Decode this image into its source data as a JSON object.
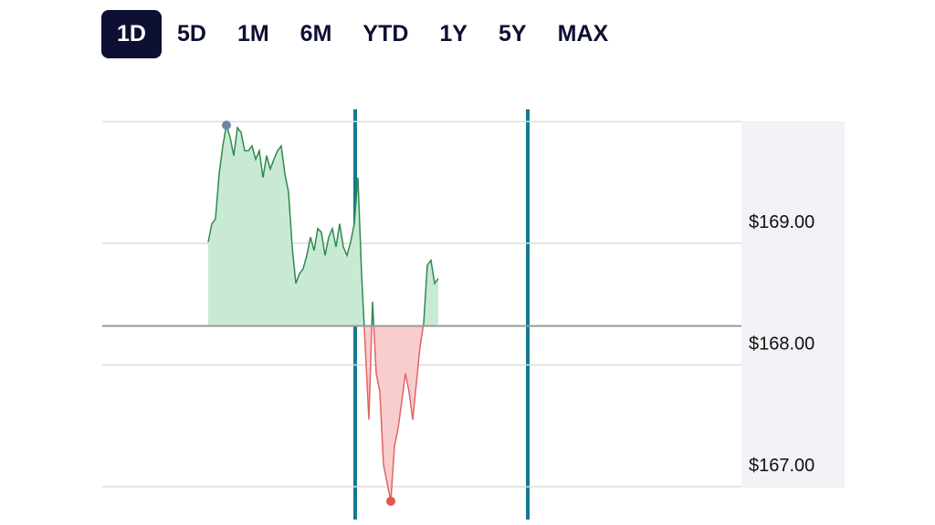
{
  "tabs": [
    "1D",
    "5D",
    "1M",
    "6M",
    "YTD",
    "1Y",
    "5Y",
    "MAX"
  ],
  "selected_tab": 0,
  "chart_data": {
    "type": "line",
    "values": [
      169.01,
      169.16,
      169.2,
      169.57,
      169.8,
      169.97,
      169.87,
      169.72,
      169.95,
      169.91,
      169.76,
      169.76,
      169.8,
      169.69,
      169.76,
      169.54,
      169.72,
      169.61,
      169.69,
      169.76,
      169.8,
      169.57,
      169.42,
      168.97,
      168.67,
      168.75,
      168.79,
      168.9,
      169.05,
      168.94,
      169.12,
      169.09,
      168.9,
      169.05,
      169.12,
      168.97,
      169.16,
      168.97,
      168.9,
      169.01,
      169.16,
      169.54,
      168.75,
      168.15,
      167.55,
      168.52,
      167.93,
      167.78,
      167.18,
      167.03,
      166.88,
      167.33,
      167.48,
      167.7,
      167.93,
      167.78,
      167.55,
      167.85,
      168.15,
      168.34,
      168.82,
      168.86,
      168.67,
      168.71
    ],
    "previous_close": 168.32,
    "ylim": [
      166.73,
      170.1
    ],
    "yticks": [
      {
        "value": 167,
        "label": "$167.00"
      },
      {
        "value": 168,
        "label": "$168.00"
      },
      {
        "value": 169,
        "label": "$169.00"
      },
      {
        "value": 170,
        "label": null
      }
    ],
    "up_color": "#2f8a4e",
    "up_fill": "#c8ead5",
    "down_color": "#e06464",
    "down_fill": "#f9cdcd",
    "grid": true
  }
}
